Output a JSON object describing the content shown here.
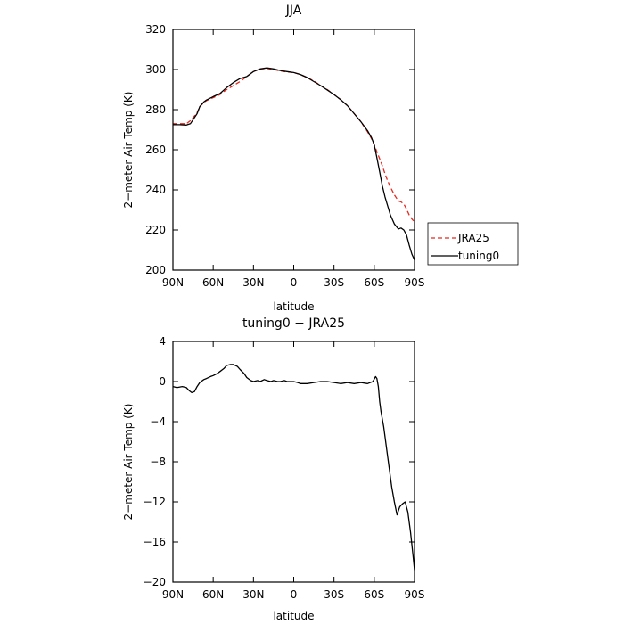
{
  "chart_data": [
    {
      "type": "line",
      "title": "JJA",
      "xlabel": "latitude",
      "ylabel": "2−meter Air Temp (K)",
      "xlim": [
        90,
        -90
      ],
      "ylim": [
        200,
        320
      ],
      "xticks": [
        90,
        60,
        30,
        0,
        -30,
        -60,
        -90
      ],
      "xtick_labels": [
        "90N",
        "60N",
        "30N",
        "0",
        "30S",
        "60S",
        "90S"
      ],
      "yticks": [
        200,
        220,
        240,
        260,
        280,
        300,
        320
      ],
      "ytick_labels": [
        "200",
        "220",
        "240",
        "260",
        "280",
        "300",
        "320"
      ],
      "legend_position": "right-outside-bottom",
      "series": [
        {
          "name": "JRA25",
          "color": "#e8281e",
          "dash": "dashed",
          "x": [
            90,
            85,
            80,
            77,
            75,
            72,
            70,
            67,
            65,
            60,
            55,
            50,
            45,
            40,
            35,
            30,
            25,
            20,
            15,
            10,
            5,
            0,
            -5,
            -10,
            -15,
            -20,
            -25,
            -30,
            -35,
            -40,
            -45,
            -50,
            -55,
            -58,
            -60,
            -62,
            -64,
            -66,
            -68,
            -70,
            -72,
            -75,
            -78,
            -80,
            -82,
            -84,
            -86,
            -88,
            -90
          ],
          "y": [
            273.0,
            273.0,
            273.0,
            274.5,
            276.0,
            278.5,
            281.5,
            283.5,
            284.5,
            286.0,
            287.5,
            290.0,
            292.0,
            294.0,
            296.5,
            299.0,
            300.3,
            300.5,
            300.0,
            299.3,
            298.8,
            298.5,
            297.5,
            296.0,
            294.3,
            292.0,
            290.0,
            287.5,
            285.0,
            282.0,
            278.0,
            274.0,
            269.0,
            265.5,
            262.5,
            259.0,
            255.5,
            252.0,
            248.0,
            244.5,
            241.5,
            237.5,
            234.5,
            234.0,
            233.0,
            230.5,
            227.5,
            225.5,
            224.0
          ]
        },
        {
          "name": "tuning0",
          "color": "#000000",
          "dash": "solid",
          "x": [
            90,
            85,
            80,
            77,
            75,
            72,
            70,
            67,
            65,
            60,
            55,
            50,
            45,
            40,
            35,
            30,
            25,
            20,
            15,
            10,
            5,
            0,
            -5,
            -10,
            -15,
            -20,
            -25,
            -30,
            -35,
            -40,
            -45,
            -50,
            -55,
            -58,
            -60,
            -62,
            -64,
            -66,
            -68,
            -70,
            -72,
            -75,
            -78,
            -80,
            -82,
            -84,
            -86,
            -88,
            -90
          ],
          "y": [
            272.5,
            272.5,
            272.3,
            273.0,
            275.0,
            278.0,
            281.5,
            283.8,
            284.8,
            286.5,
            288.0,
            291.0,
            293.5,
            295.5,
            296.5,
            299.0,
            300.3,
            300.8,
            300.3,
            299.5,
            299.0,
            298.5,
            297.5,
            296.0,
            294.0,
            292.0,
            289.8,
            287.5,
            285.0,
            282.0,
            278.0,
            274.0,
            269.5,
            266.0,
            262.5,
            256.0,
            249.0,
            242.0,
            236.5,
            232.0,
            227.5,
            223.0,
            220.5,
            221.0,
            220.0,
            217.5,
            212.5,
            208.0,
            205.0
          ]
        }
      ]
    },
    {
      "type": "line",
      "title": "tuning0 − JRA25",
      "xlabel": "latitude",
      "ylabel": "2−meter Air Temp (K)",
      "xlim": [
        90,
        -90
      ],
      "ylim": [
        -20,
        4
      ],
      "xticks": [
        90,
        60,
        30,
        0,
        -30,
        -60,
        -90
      ],
      "xtick_labels": [
        "90N",
        "60N",
        "30N",
        "0",
        "30S",
        "60S",
        "90S"
      ],
      "yticks": [
        4,
        0,
        -4,
        -8,
        -12,
        -16,
        -20
      ],
      "ytick_labels": [
        "4",
        "0",
        "−4",
        "−8",
        "−12",
        "−16",
        "−20"
      ],
      "series": [
        {
          "color": "#000000",
          "dash": "solid",
          "x": [
            90,
            87,
            83,
            80,
            78,
            76,
            74,
            72,
            70,
            67,
            65,
            62,
            60,
            57,
            55,
            52,
            50,
            47,
            45,
            42,
            40,
            37,
            35,
            32,
            30,
            27,
            25,
            22,
            20,
            17,
            15,
            12,
            10,
            7,
            5,
            2,
            0,
            -3,
            -5,
            -8,
            -10,
            -15,
            -20,
            -25,
            -30,
            -35,
            -40,
            -45,
            -50,
            -55,
            -57,
            -59,
            -61,
            -62,
            -63,
            -64,
            -65,
            -67,
            -70,
            -73,
            -75,
            -77,
            -79,
            -81,
            -83,
            -85,
            -87,
            -89,
            -90
          ],
          "y": [
            -0.5,
            -0.6,
            -0.5,
            -0.6,
            -0.9,
            -1.1,
            -1.0,
            -0.5,
            -0.1,
            0.2,
            0.3,
            0.5,
            0.6,
            0.8,
            1.0,
            1.3,
            1.6,
            1.7,
            1.7,
            1.5,
            1.2,
            0.8,
            0.4,
            0.1,
            0.0,
            0.1,
            0.0,
            0.2,
            0.1,
            0.0,
            0.1,
            0.0,
            0.0,
            0.1,
            0.0,
            0.0,
            0.0,
            -0.1,
            -0.2,
            -0.2,
            -0.2,
            -0.1,
            0.0,
            0.0,
            -0.1,
            -0.2,
            -0.1,
            -0.2,
            -0.1,
            -0.2,
            -0.1,
            0.0,
            0.5,
            0.3,
            -0.5,
            -2.0,
            -3.0,
            -4.5,
            -7.5,
            -10.5,
            -12.0,
            -13.3,
            -12.5,
            -12.2,
            -12.0,
            -13.0,
            -15.0,
            -17.5,
            -18.8
          ]
        }
      ]
    }
  ]
}
